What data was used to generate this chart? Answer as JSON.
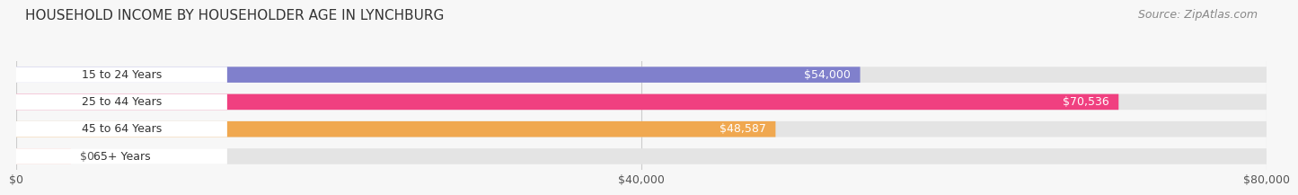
{
  "title": "HOUSEHOLD INCOME BY HOUSEHOLDER AGE IN LYNCHBURG",
  "source": "Source: ZipAtlas.com",
  "categories": [
    "15 to 24 Years",
    "25 to 44 Years",
    "45 to 64 Years",
    "65+ Years"
  ],
  "values": [
    54000,
    70536,
    48587,
    0
  ],
  "bar_colors": [
    "#8080cc",
    "#f04080",
    "#f0a850",
    "#f0a8a0"
  ],
  "value_labels": [
    "$54,000",
    "$70,536",
    "$48,587",
    "$0"
  ],
  "xlim": [
    0,
    80000
  ],
  "xticks": [
    0,
    40000,
    80000
  ],
  "xticklabels": [
    "$0",
    "$40,000",
    "$80,000"
  ],
  "background_color": "#f7f7f7",
  "bar_bg_color": "#e4e4e4",
  "title_fontsize": 11,
  "label_fontsize": 9,
  "value_fontsize": 9,
  "tick_fontsize": 9,
  "source_fontsize": 9
}
